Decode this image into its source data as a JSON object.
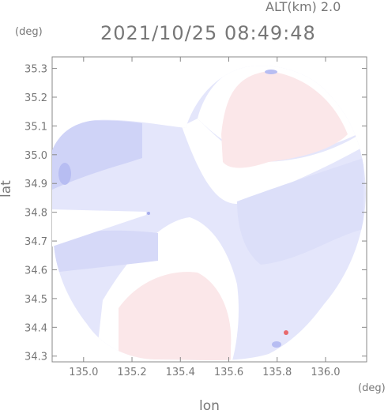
{
  "header": {
    "altitude_label": "ALT(km) 2.0",
    "timestamp": "2021/10/25 08:49:48"
  },
  "axes": {
    "lat_unit": "(deg)",
    "lon_unit": "(deg)",
    "ylabel": "lat",
    "xlabel": "lon"
  },
  "chart_data": {
    "type": "heatmap",
    "description_kind": "radar velocity PPI",
    "xlabel": "lon",
    "ylabel": "lat",
    "xlim": [
      134.87,
      136.17
    ],
    "ylim": [
      34.28,
      35.34
    ],
    "x_ticks": [
      135.0,
      135.2,
      135.4,
      135.6,
      135.8,
      136.0
    ],
    "x_tick_labels": [
      "135.0",
      "135.2",
      "135.4",
      "135.6",
      "135.8",
      "136.0"
    ],
    "y_ticks": [
      34.3,
      34.4,
      34.5,
      34.6,
      34.7,
      34.8,
      34.9,
      35.0,
      35.1,
      35.2,
      35.3
    ],
    "y_tick_labels": [
      "34.3",
      "34.4",
      "34.5",
      "34.6",
      "34.7",
      "34.8",
      "34.9",
      "35.0",
      "35.1",
      "35.2",
      "35.3"
    ],
    "colors": {
      "approaching": "#dde0fb",
      "receding": "#fbe6e8",
      "strong_approaching": "#b7bdf2",
      "strong_receding": "#e8696c",
      "frame": "#888888"
    },
    "radar_center": [
      135.52,
      34.81
    ]
  }
}
